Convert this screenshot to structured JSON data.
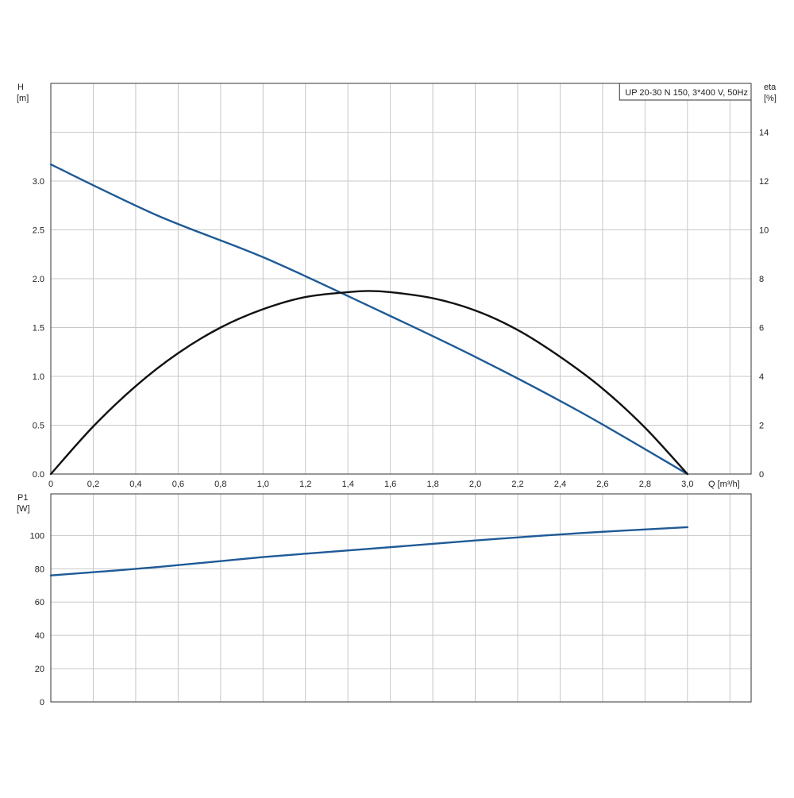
{
  "chart_data": [
    {
      "type": "line",
      "title": "UP 20-30 N 150, 3*400 V, 50Hz",
      "xlabel": "Q [m³/h]",
      "x_ticks": [
        "0",
        "0,2",
        "0,4",
        "0,6",
        "0,8",
        "1,0",
        "1,2",
        "1,4",
        "1,6",
        "1,8",
        "2,0",
        "2,2",
        "2,4",
        "2,6",
        "2,8",
        "3,0"
      ],
      "xlim": [
        0,
        3.3
      ],
      "y_left": {
        "label": "H",
        "unit": "[m]",
        "lim": [
          0,
          4.0
        ],
        "ticks": [
          "0.0",
          "0.5",
          "1.0",
          "1.5",
          "2.0",
          "2.5",
          "3.0"
        ]
      },
      "y_right": {
        "label": "eta",
        "unit": "[%]",
        "lim": [
          0,
          16
        ],
        "ticks": [
          "0",
          "2",
          "4",
          "6",
          "8",
          "10",
          "12",
          "14"
        ]
      },
      "grid": true,
      "legend": "top-right",
      "series": [
        {
          "axis": "left",
          "color": "#1e5a96",
          "x": [
            0,
            0.5,
            1.0,
            1.5,
            2.0,
            2.5,
            3.0
          ],
          "y": [
            3.17,
            2.65,
            2.22,
            1.72,
            1.2,
            0.63,
            0.0
          ]
        },
        {
          "axis": "right",
          "color": "#111111",
          "x": [
            0,
            0.2,
            0.4,
            0.6,
            0.8,
            1.0,
            1.2,
            1.4,
            1.5,
            1.6,
            1.8,
            2.0,
            2.2,
            2.4,
            2.6,
            2.8,
            3.0
          ],
          "y": [
            0,
            1.95,
            3.6,
            4.95,
            6.0,
            6.75,
            7.25,
            7.45,
            7.5,
            7.45,
            7.2,
            6.7,
            5.9,
            4.8,
            3.5,
            1.9,
            0
          ]
        }
      ]
    },
    {
      "type": "line",
      "x_ticks": [
        "",
        "",
        "",
        "",
        "",
        "",
        "",
        "",
        "",
        "",
        "",
        "",
        "",
        "",
        "",
        ""
      ],
      "xlim": [
        0,
        3.3
      ],
      "y_left": {
        "label": "P1",
        "unit": "[W]",
        "lim": [
          0,
          125
        ],
        "ticks": [
          "0",
          "20",
          "40",
          "60",
          "80",
          "100"
        ]
      },
      "grid": true,
      "series": [
        {
          "axis": "left",
          "color": "#1e5a96",
          "x": [
            0,
            0.5,
            1.0,
            1.5,
            2.0,
            2.5,
            3.0
          ],
          "y": [
            76,
            81,
            87,
            92,
            97,
            101.5,
            105
          ]
        }
      ]
    }
  ]
}
